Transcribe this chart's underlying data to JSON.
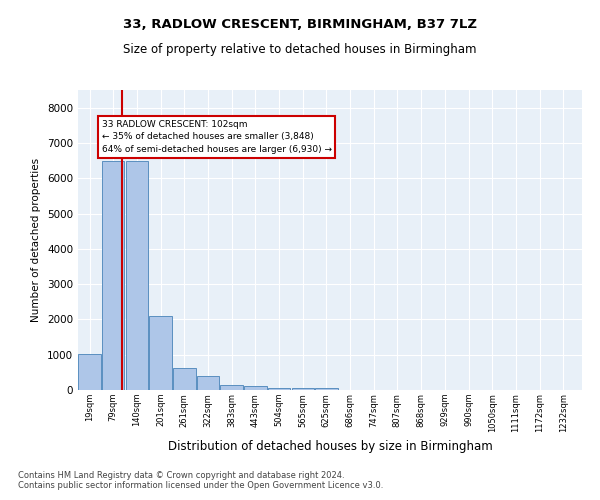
{
  "title1": "33, RADLOW CRESCENT, BIRMINGHAM, B37 7LZ",
  "title2": "Size of property relative to detached houses in Birmingham",
  "xlabel": "Distribution of detached houses by size in Birmingham",
  "ylabel": "Number of detached properties",
  "bins": [
    19,
    79,
    140,
    201,
    261,
    322,
    383,
    443,
    504,
    565,
    625,
    686,
    747,
    807,
    868,
    929,
    990,
    1050,
    1111,
    1172,
    1232
  ],
  "counts": [
    1020,
    6480,
    6480,
    2100,
    620,
    390,
    155,
    105,
    55,
    55,
    55,
    0,
    0,
    0,
    0,
    0,
    0,
    0,
    0,
    0
  ],
  "bar_color": "#aec6e8",
  "bar_edge_color": "#5a8fc0",
  "property_size": 102,
  "property_line_color": "#cc0000",
  "annotation_text": "33 RADLOW CRESCENT: 102sqm\n← 35% of detached houses are smaller (3,848)\n64% of semi-detached houses are larger (6,930) →",
  "annotation_box_color": "#ffffff",
  "annotation_box_edge": "#cc0000",
  "ylim": [
    0,
    8500
  ],
  "yticks": [
    0,
    1000,
    2000,
    3000,
    4000,
    5000,
    6000,
    7000,
    8000
  ],
  "bg_color": "#e8f0f8",
  "footer1": "Contains HM Land Registry data © Crown copyright and database right 2024.",
  "footer2": "Contains public sector information licensed under the Open Government Licence v3.0."
}
